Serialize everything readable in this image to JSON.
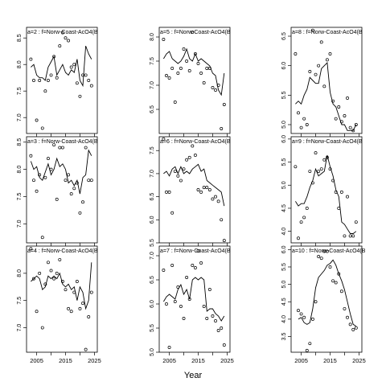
{
  "chart_data": {
    "type": "scatter",
    "xlabel": "Year",
    "panels": [
      {
        "title": "a=2 : f=Norw-Coast-AcO4(B",
        "xlim": [
          2001.5,
          2026
        ],
        "ylim": [
          6.7,
          8.7
        ],
        "yticks": [
          7.0,
          7.5,
          8.0,
          8.5
        ],
        "xticks": [
          2005,
          2015,
          2025
        ],
        "xtick_labels_shown": false,
        "x": [
          2003,
          2004,
          2005,
          2006,
          2007,
          2008,
          2009,
          2010,
          2011,
          2012,
          2013,
          2014,
          2015,
          2016,
          2017,
          2018,
          2019,
          2020,
          2021,
          2022,
          2023,
          2024
        ],
        "observed": [
          8.1,
          7.7,
          6.95,
          7.7,
          6.8,
          7.5,
          7.7,
          7.8,
          8.15,
          7.75,
          8.35,
          8.6,
          8.5,
          8.45,
          7.95,
          8.0,
          7.65,
          7.4,
          7.8,
          7.8,
          7.7,
          7.6
        ],
        "fitted": [
          7.95,
          8.0,
          7.8,
          7.75,
          7.75,
          7.7,
          7.95,
          8.05,
          8.15,
          7.8,
          7.9,
          8.0,
          7.85,
          7.8,
          7.9,
          7.85,
          8.1,
          7.7,
          7.6,
          8.35,
          8.2,
          8.1
        ]
      },
      {
        "title": "a=3 : f=Norw-Coast-AcO4(B",
        "xlim": [
          2001.5,
          2026
        ],
        "ylim": [
          6.65,
          8.6
        ],
        "yticks": [
          7.0,
          7.5,
          8.0,
          8.5
        ],
        "xticks": [
          2005,
          2015,
          2025
        ],
        "xtick_labels_shown": false,
        "x": [
          2003,
          2004,
          2005,
          2006,
          2007,
          2008,
          2009,
          2010,
          2011,
          2012,
          2013,
          2014,
          2015,
          2016,
          2017,
          2018,
          2019,
          2020,
          2021,
          2022,
          2023,
          2024
        ],
        "observed": [
          8.25,
          7.8,
          7.6,
          7.9,
          6.75,
          7.85,
          8.2,
          8.0,
          8.45,
          7.45,
          8.4,
          8.4,
          7.8,
          7.9,
          7.55,
          7.65,
          7.75,
          7.2,
          7.4,
          8.4,
          7.8,
          7.8
        ],
        "fitted": [
          8.15,
          8.0,
          8.05,
          7.85,
          7.8,
          7.95,
          8.1,
          7.9,
          8.0,
          8.2,
          8.05,
          8.1,
          8.0,
          7.75,
          7.8,
          7.7,
          7.8,
          7.55,
          7.85,
          7.9,
          8.35,
          8.25
        ]
      },
      {
        "title": "a=4 : f=Norw-Coast-AcO4(B",
        "xlim": [
          2001.5,
          2026
        ],
        "ylim": [
          6.55,
          8.5
        ],
        "yticks": [
          7.0,
          7.5,
          8.0
        ],
        "xticks": [
          2005,
          2015,
          2025
        ],
        "xtick_labels_shown": true,
        "x": [
          2003,
          2004,
          2005,
          2006,
          2007,
          2008,
          2009,
          2010,
          2011,
          2012,
          2013,
          2014,
          2015,
          2016,
          2017,
          2018,
          2019,
          2020,
          2021,
          2022,
          2023,
          2024
        ],
        "observed": [
          8.45,
          7.9,
          7.3,
          8.0,
          7.0,
          7.8,
          8.2,
          8.05,
          7.9,
          8.0,
          8.25,
          7.85,
          7.7,
          7.35,
          7.3,
          7.65,
          7.85,
          7.35,
          7.45,
          6.6,
          7.2,
          7.65
        ],
        "fitted": [
          7.85,
          7.9,
          7.95,
          7.9,
          7.7,
          7.75,
          7.95,
          7.9,
          7.95,
          7.9,
          8.0,
          7.8,
          7.75,
          7.8,
          7.7,
          7.75,
          7.5,
          7.75,
          7.65,
          7.35,
          7.5,
          8.2
        ]
      },
      {
        "title": "a=5 : f=Norw-Coast-AcO4(B",
        "xlim": [
          2001.5,
          2026
        ],
        "ylim": [
          6.0,
          8.2
        ],
        "yticks": [
          6.5,
          7.0,
          7.5,
          8.0
        ],
        "xticks": [
          2005,
          2015,
          2025
        ],
        "xtick_labels_shown": false,
        "x": [
          2003,
          2004,
          2005,
          2006,
          2007,
          2008,
          2009,
          2010,
          2011,
          2012,
          2013,
          2014,
          2015,
          2016,
          2017,
          2018,
          2019,
          2020,
          2021,
          2022,
          2023,
          2024
        ],
        "observed": [
          7.95,
          7.2,
          7.15,
          7.35,
          6.65,
          7.25,
          7.35,
          7.75,
          7.5,
          7.3,
          8.1,
          7.65,
          7.45,
          7.25,
          7.05,
          7.35,
          7.35,
          6.95,
          6.9,
          7.0,
          6.1,
          6.6
        ],
        "fitted": [
          7.55,
          7.65,
          7.7,
          7.55,
          7.5,
          7.45,
          7.5,
          7.6,
          7.75,
          7.55,
          7.5,
          7.65,
          7.5,
          7.55,
          7.5,
          7.45,
          7.4,
          7.25,
          7.2,
          6.9,
          6.8,
          7.25
        ]
      },
      {
        "title": "a=6 : f=Norw-Coast-AcO4(B",
        "xlim": [
          2001.5,
          2026
        ],
        "ylim": [
          5.5,
          7.8
        ],
        "yticks": [
          5.5,
          6.0,
          6.5,
          7.0,
          7.5
        ],
        "xticks": [
          2005,
          2015,
          2025
        ],
        "xtick_labels_shown": false,
        "x": [
          2003,
          2004,
          2005,
          2006,
          2007,
          2008,
          2009,
          2010,
          2011,
          2012,
          2013,
          2014,
          2015,
          2016,
          2017,
          2018,
          2019,
          2020,
          2021,
          2022,
          2023,
          2024
        ],
        "observed": [
          7.75,
          6.6,
          6.6,
          6.15,
          7.05,
          6.95,
          6.85,
          7.1,
          7.3,
          7.35,
          7.6,
          7.4,
          6.65,
          6.6,
          6.7,
          6.7,
          6.65,
          6.45,
          6.5,
          6.4,
          6.0,
          5.55
        ],
        "fitted": [
          7.0,
          7.05,
          6.95,
          7.1,
          7.15,
          7.0,
          7.15,
          7.0,
          7.05,
          7.0,
          7.1,
          7.15,
          7.2,
          7.05,
          7.1,
          6.85,
          6.8,
          6.75,
          6.7,
          6.65,
          6.6,
          6.3
        ]
      },
      {
        "title": "a=7 : f=Norw-Coast-AcO4(B",
        "xlim": [
          2001.5,
          2026
        ],
        "ylim": [
          5.0,
          7.2
        ],
        "yticks": [
          5.0,
          5.5,
          6.0,
          6.5,
          7.0
        ],
        "xticks": [
          2005,
          2015,
          2025
        ],
        "xtick_labels_shown": true,
        "x": [
          2003,
          2004,
          2005,
          2006,
          2007,
          2008,
          2009,
          2010,
          2011,
          2012,
          2013,
          2014,
          2015,
          2016,
          2017,
          2018,
          2019,
          2020,
          2021,
          2022,
          2023,
          2024
        ],
        "observed": [
          6.7,
          6.0,
          5.1,
          6.8,
          6.05,
          6.35,
          5.95,
          5.7,
          6.55,
          6.1,
          6.8,
          6.75,
          7.1,
          6.85,
          5.95,
          5.7,
          6.3,
          5.75,
          5.65,
          5.45,
          5.5,
          5.15
        ],
        "fitted": [
          6.05,
          6.15,
          6.2,
          6.15,
          6.1,
          6.3,
          6.4,
          6.2,
          6.3,
          6.1,
          6.5,
          6.55,
          6.5,
          6.55,
          6.5,
          5.85,
          5.9,
          5.9,
          5.8,
          5.75,
          5.65,
          5.75
        ]
      },
      {
        "title": "a=8 : f=Norw-Coast-AcO4(B",
        "xlim": [
          2001.5,
          2026
        ],
        "ylim": [
          4.85,
          6.65
        ],
        "yticks": [
          5.0,
          5.5,
          6.0,
          6.5
        ],
        "xticks": [
          2005,
          2015,
          2025
        ],
        "xtick_labels_shown": false,
        "x": [
          2003,
          2004,
          2005,
          2006,
          2007,
          2008,
          2009,
          2010,
          2011,
          2012,
          2013,
          2014,
          2015,
          2016,
          2017,
          2018,
          2019,
          2020,
          2021,
          2022,
          2023,
          2024
        ],
        "observed": [
          6.2,
          5.2,
          4.95,
          5.1,
          5.0,
          5.9,
          6.6,
          5.85,
          6.0,
          6.4,
          5.65,
          6.1,
          6.2,
          5.4,
          5.1,
          5.3,
          5.05,
          5.15,
          5.45,
          4.95,
          4.9,
          5.0
        ],
        "fitted": [
          5.35,
          5.4,
          5.35,
          5.5,
          5.6,
          5.8,
          5.75,
          5.7,
          5.7,
          5.95,
          6.0,
          6.05,
          5.55,
          5.35,
          5.3,
          5.15,
          5.0,
          5.0,
          4.9,
          4.9,
          4.9,
          5.0
        ]
      },
      {
        "title": "a=9 : f=Norw-Coast-AcO4(B",
        "xlim": [
          2001.5,
          2026
        ],
        "ylim": [
          3.75,
          6.05
        ],
        "yticks": [
          4.0,
          4.5,
          5.0,
          5.5,
          6.0
        ],
        "xticks": [
          2005,
          2015,
          2025
        ],
        "xtick_labels_shown": false,
        "x": [
          2003,
          2004,
          2005,
          2006,
          2007,
          2008,
          2009,
          2010,
          2011,
          2012,
          2013,
          2014,
          2015,
          2016,
          2017,
          2018,
          2019,
          2020,
          2021,
          2022,
          2023,
          2024
        ],
        "observed": [
          5.4,
          3.85,
          4.2,
          4.3,
          4.5,
          5.3,
          5.05,
          5.7,
          5.3,
          5.35,
          5.55,
          5.6,
          5.35,
          5.1,
          4.85,
          4.5,
          4.85,
          3.9,
          4.75,
          3.9,
          3.9,
          4.2
        ],
        "fitted": [
          4.65,
          4.55,
          4.6,
          4.6,
          4.75,
          4.95,
          5.1,
          5.35,
          5.2,
          5.25,
          5.3,
          5.65,
          5.4,
          5.2,
          4.9,
          4.75,
          4.2,
          4.15,
          4.05,
          3.95,
          3.95,
          4.0
        ]
      },
      {
        "title": "a=10 : f=Norw-Coast-AcO4(B",
        "xlim": [
          2001.5,
          2026
        ],
        "ylim": [
          3.05,
          6.1
        ],
        "yticks": [
          3.5,
          4.0,
          4.5,
          5.0,
          5.5,
          6.0
        ],
        "xticks": [
          2005,
          2015,
          2025
        ],
        "xtick_labels_shown": true,
        "x": [
          2004,
          2005,
          2006,
          2007,
          2008,
          2009,
          2010,
          2011,
          2012,
          2013,
          2014,
          2015,
          2016,
          2017,
          2018,
          2019,
          2020,
          2021,
          2022,
          2023,
          2024
        ],
        "observed": [
          4.25,
          4.15,
          4.05,
          3.1,
          3.3,
          4.0,
          4.5,
          5.8,
          5.75,
          5.95,
          5.95,
          5.5,
          5.1,
          5.05,
          5.3,
          4.8,
          4.3,
          4.05,
          3.85,
          3.7,
          3.75
        ],
        "fitted": [
          4.0,
          4.05,
          3.9,
          3.85,
          3.9,
          4.3,
          4.9,
          5.2,
          5.3,
          5.4,
          5.55,
          5.6,
          5.7,
          5.55,
          5.3,
          5.1,
          4.85,
          4.5,
          4.15,
          3.85,
          3.8
        ]
      }
    ]
  }
}
